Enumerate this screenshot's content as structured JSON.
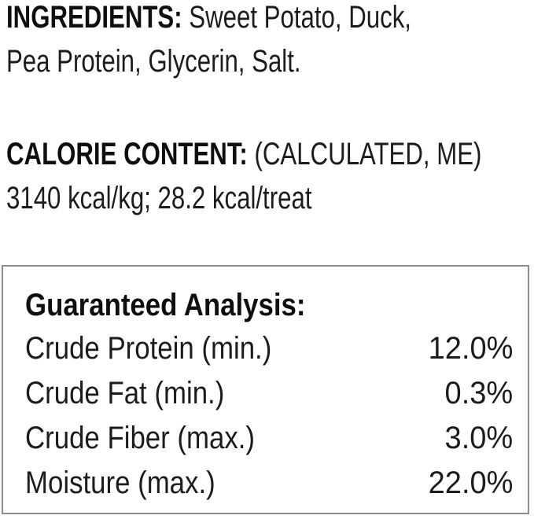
{
  "ingredients": {
    "label": "INGREDIENTS:",
    "line1_rest": "Sweet Potato, Duck,",
    "line2": "Pea Protein, Glycerin, Salt."
  },
  "calories": {
    "label": "CALORIE CONTENT:",
    "line1_rest": "(CALCULATED, ME)",
    "line2": "3140 kcal/kg; 28.2 kcal/treat"
  },
  "guaranteed_analysis": {
    "title": "Guaranteed Analysis:",
    "rows": [
      {
        "label": "Crude Protein (min.)",
        "value": "12.0%"
      },
      {
        "label": "Crude Fat (min.)",
        "value": "0.3%"
      },
      {
        "label": "Crude Fiber (max.)",
        "value": "3.0%"
      },
      {
        "label": "Moisture (max.)",
        "value": "22.0%"
      }
    ]
  },
  "colors": {
    "text": "#1c1c1c",
    "bold_text": "#0f0f0f",
    "box_border": "#8d8d8d",
    "background": "#ffffff"
  }
}
